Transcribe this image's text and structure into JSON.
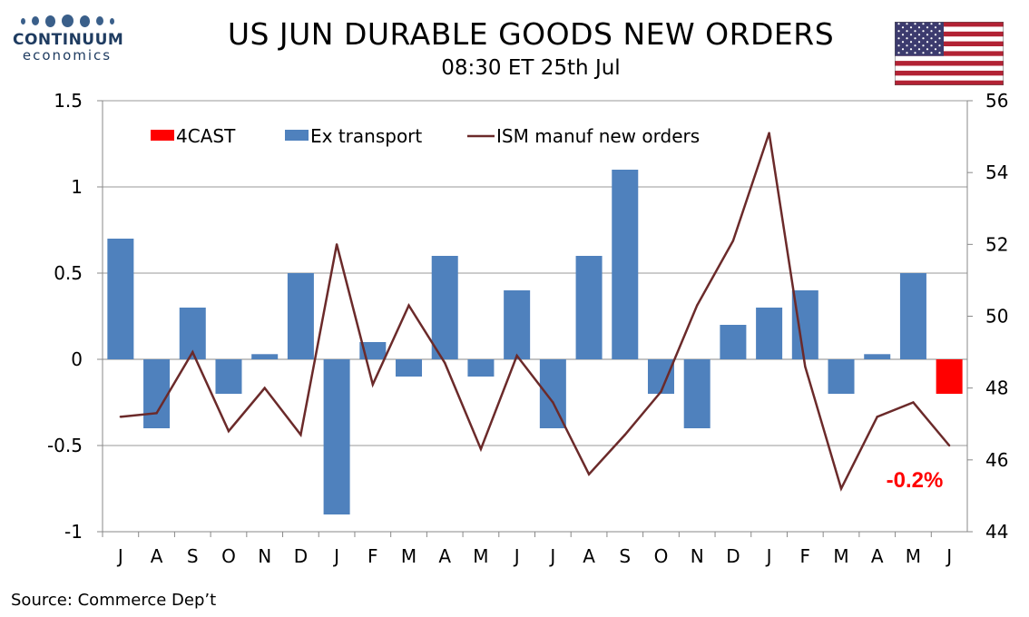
{
  "logo": {
    "name": "CONTINUUM",
    "sub": "economics"
  },
  "title": "US JUN DURABLE GOODS NEW ORDERS",
  "subtitle": "08:30 ET 25th Jul",
  "source": "Source: Commerce Dep’t",
  "colors": {
    "forecast": "#ff0000",
    "bars": "#4f81bd",
    "line": "#6b2a2a"
  },
  "chart_data": {
    "type": "bar",
    "categories": [
      "J",
      "A",
      "S",
      "O",
      "N",
      "D",
      "J",
      "F",
      "M",
      "A",
      "M",
      "J",
      "J",
      "A",
      "S",
      "O",
      "N",
      "D",
      "J",
      "F",
      "M",
      "A",
      "M",
      "J"
    ],
    "series": [
      {
        "name": "Ex transport",
        "type": "bar",
        "axis": "left",
        "color": "#4f81bd",
        "values": [
          0.7,
          -0.4,
          0.3,
          -0.2,
          0.03,
          0.5,
          -0.9,
          0.1,
          -0.1,
          0.6,
          -0.1,
          0.4,
          -0.4,
          0.6,
          1.1,
          -0.2,
          -0.4,
          0.2,
          0.3,
          0.4,
          -0.2,
          0.03,
          0.5,
          null
        ]
      },
      {
        "name": "4CAST",
        "type": "bar",
        "axis": "left",
        "color": "#ff0000",
        "values": [
          null,
          null,
          null,
          null,
          null,
          null,
          null,
          null,
          null,
          null,
          null,
          null,
          null,
          null,
          null,
          null,
          null,
          null,
          null,
          null,
          null,
          null,
          null,
          -0.2
        ]
      },
      {
        "name": "ISM manuf new orders",
        "type": "line",
        "axis": "right",
        "color": "#6b2a2a",
        "values": [
          47.2,
          47.3,
          49.0,
          46.8,
          48.0,
          46.7,
          52.0,
          48.1,
          50.3,
          48.7,
          46.3,
          48.9,
          47.6,
          45.6,
          46.7,
          47.9,
          50.3,
          52.1,
          55.1,
          48.6,
          45.2,
          47.2,
          47.6,
          46.4
        ]
      }
    ],
    "y_left": {
      "min": -1,
      "max": 1.5,
      "ticks": [
        "-1",
        "-0.5",
        "0",
        "0.5",
        "1",
        "1.5"
      ],
      "tick_values": [
        -1,
        -0.5,
        0,
        0.5,
        1,
        1.5
      ]
    },
    "y_right": {
      "min": 44,
      "max": 56,
      "ticks": [
        "44",
        "46",
        "48",
        "50",
        "52",
        "54",
        "56"
      ],
      "tick_values": [
        44,
        46,
        48,
        50,
        52,
        54,
        56
      ]
    },
    "annotation": {
      "text": "-0.2%",
      "color": "#ff0000"
    },
    "grid": true,
    "legend": "top"
  }
}
